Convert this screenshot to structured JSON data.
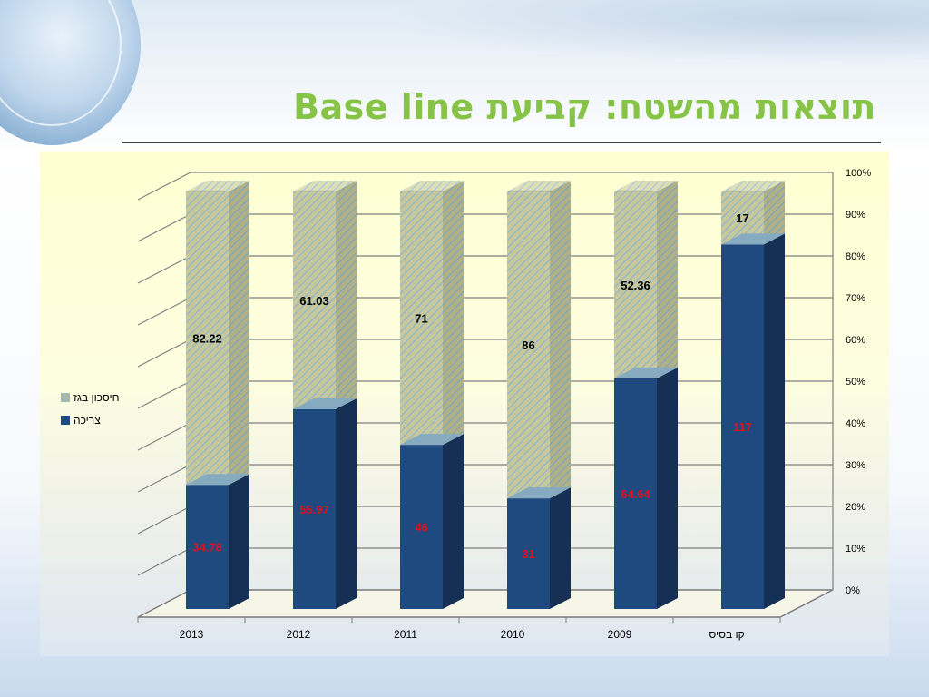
{
  "slide": {
    "title": "תוצאות מהשטח: קביעת Base line"
  },
  "colors": {
    "consumption": "#1f4a80",
    "saving": "#c8c89a",
    "title": "#86c347",
    "lower_labels": "#e0101c"
  },
  "chart_data": {
    "type": "bar",
    "stacked": "percent",
    "categories": [
      "2013",
      "2012",
      "2011",
      "2010",
      "2009",
      "קו בסיס"
    ],
    "series": [
      {
        "name": "צריכה",
        "values": [
          34.78,
          55.97,
          46,
          31,
          64.64,
          117
        ],
        "labels": [
          "34.78",
          "55.97",
          "46",
          "31",
          "64.64",
          "117"
        ]
      },
      {
        "name": "חיסכון בגז",
        "values": [
          82.22,
          61.03,
          71,
          86,
          52.36,
          17
        ],
        "labels": [
          "82.22",
          "61.03",
          "71",
          "86",
          "52.36",
          "17"
        ]
      }
    ],
    "ylim": [
      0,
      100
    ],
    "yticks": [
      "0%",
      "10%",
      "20%",
      "30%",
      "40%",
      "50%",
      "60%",
      "70%",
      "80%",
      "90%",
      "100%"
    ],
    "grid": true,
    "legend_position": "left"
  }
}
